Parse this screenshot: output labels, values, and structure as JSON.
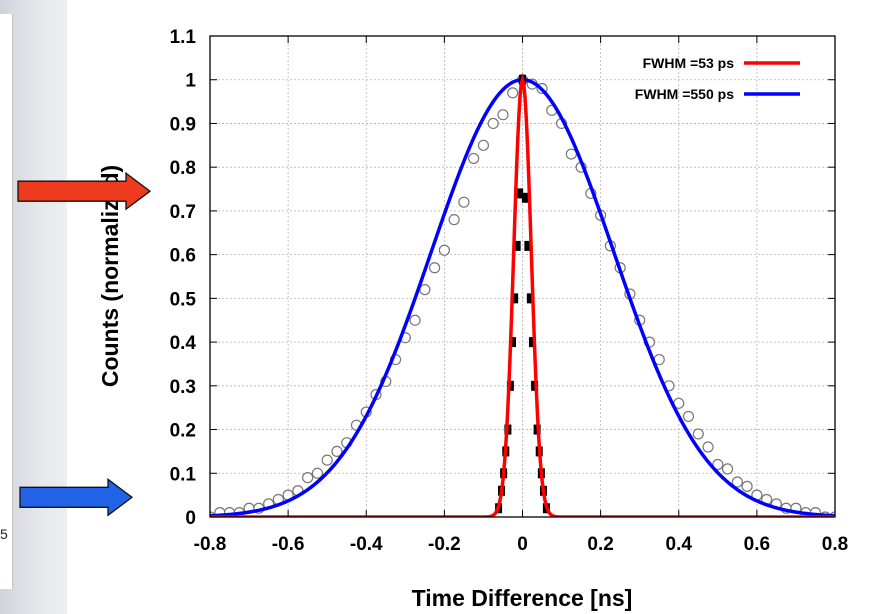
{
  "chart_data": {
    "type": "line",
    "title": "",
    "xlabel": "Time Difference [ns]",
    "ylabel": "Counts (normalized)",
    "xlim": [
      -0.8,
      0.8
    ],
    "ylim": [
      0,
      1.1
    ],
    "xticks": [
      "-0.8",
      "-0.6",
      "-0.4",
      "-0.2",
      "0",
      "0.2",
      "0.4",
      "0.6",
      "0.8"
    ],
    "yticks": [
      "0",
      "0.1",
      "0.2",
      "0.3",
      "0.4",
      "0.5",
      "0.6",
      "0.7",
      "0.8",
      "0.9",
      "1",
      "1.1"
    ],
    "grid": true,
    "legend_position": "top-right",
    "series": [
      {
        "name": "FWHM =53 ps",
        "color": "#ff0000",
        "kind": "gaussian-fit",
        "center": 0,
        "fwhm_ns": 0.053,
        "amplitude": 1,
        "points": {
          "marker": "black-square",
          "x": [
            -0.0612,
            -0.0537,
            -0.0483,
            -0.0428,
            -0.0374,
            -0.031,
            -0.0255,
            -0.0201,
            -0.0137,
            -0.0073,
            0,
            0.0073,
            0.0137,
            0.0201,
            0.0255,
            0.031,
            0.0374,
            0.0428,
            0.0483,
            0.0537,
            0.0612
          ],
          "y": [
            0.02,
            0.06,
            0.1,
            0.15,
            0.2,
            0.3,
            0.4,
            0.5,
            0.62,
            0.74,
            1.0,
            0.73,
            0.62,
            0.5,
            0.4,
            0.3,
            0.2,
            0.15,
            0.1,
            0.06,
            0.02
          ]
        }
      },
      {
        "name": "FWHM =550 ps",
        "color": "#0000ff",
        "kind": "gaussian-fit",
        "center": 0,
        "fwhm_ns": 0.55,
        "amplitude": 1,
        "points": {
          "marker": "open-circle",
          "x": [
            -0.8,
            -0.775,
            -0.75,
            -0.725,
            -0.7,
            -0.675,
            -0.65,
            -0.625,
            -0.6,
            -0.575,
            -0.55,
            -0.525,
            -0.5,
            -0.475,
            -0.45,
            -0.425,
            -0.4,
            -0.375,
            -0.35,
            -0.325,
            -0.3,
            -0.275,
            -0.25,
            -0.225,
            -0.2,
            -0.175,
            -0.15,
            -0.125,
            -0.1,
            -0.075,
            -0.05,
            -0.025,
            0,
            0.025,
            0.05,
            0.075,
            0.1,
            0.125,
            0.15,
            0.175,
            0.2,
            0.225,
            0.25,
            0.275,
            0.3,
            0.325,
            0.35,
            0.375,
            0.4,
            0.425,
            0.45,
            0.475,
            0.5,
            0.525,
            0.55,
            0.575,
            0.6,
            0.625,
            0.65,
            0.675,
            0.7,
            0.725,
            0.75,
            0.775,
            0.8
          ],
          "y": [
            0.0,
            0.01,
            0.01,
            0.01,
            0.02,
            0.02,
            0.03,
            0.04,
            0.05,
            0.06,
            0.09,
            0.1,
            0.13,
            0.15,
            0.17,
            0.21,
            0.24,
            0.28,
            0.31,
            0.36,
            0.41,
            0.45,
            0.52,
            0.57,
            0.61,
            0.68,
            0.72,
            0.82,
            0.85,
            0.9,
            0.92,
            0.97,
            1.0,
            0.99,
            0.98,
            0.93,
            0.9,
            0.83,
            0.8,
            0.74,
            0.69,
            0.62,
            0.57,
            0.51,
            0.45,
            0.4,
            0.36,
            0.3,
            0.26,
            0.23,
            0.19,
            0.16,
            0.12,
            0.11,
            0.08,
            0.07,
            0.05,
            0.04,
            0.03,
            0.02,
            0.02,
            0.01,
            0.01,
            0.0,
            0.0
          ]
        }
      }
    ],
    "annotations": [
      {
        "type": "arrow",
        "color": "#ee3b1f",
        "points_to_y": 0.745
      },
      {
        "type": "arrow",
        "color": "#2163e6",
        "points_to_y": 0.045
      }
    ]
  },
  "left_panel": {
    "tick_label": "5"
  }
}
